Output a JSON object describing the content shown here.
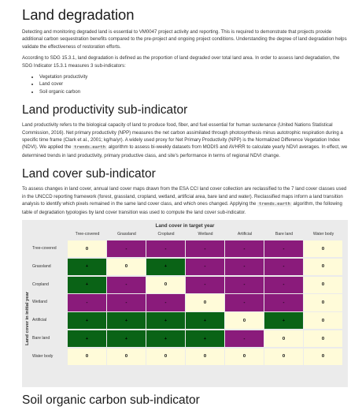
{
  "sections": {
    "degradation": {
      "title": "Land degradation",
      "p1": "Detecting and monitoring degraded land is essential to VM0047 project activity and reporting. This is required to demonstrate that projects provide additional carbon sequestration benefits compared to the pre-project and ongoing project conditions. Understanding the degree of land degradation helps validate the effectiveness of restoration efforts.",
      "p2": "According to SDG 15.3.1, land degradation is defined as the proportion of land degraded over total land area. In order to assess land degradation, the SDG Indicator 15.3.1 measures 3 sub-indicators:",
      "bullets": [
        "Vegetation productivity",
        "Land cover",
        "Soil organic carbon"
      ]
    },
    "productivity": {
      "title": "Land productivity sub-indicator",
      "p_a": "Land productivity refers to the biological capacity of land to produce food, fiber, and fuel essential for human sustenance (United Nations Statistical Commission, 2016). Net primary productivity (NPP) measures the net carbon assimilated through photosynthesis minus autotrophic respiration during a specific time frame (Clark et al., 2001; kg/ha/yr). A widely used proxy for Net Primary Productivity (NPP) is the Normalized Difference Vegetation Index (NDVI). We applied the ",
      "code": "trends.earth",
      "p_b": " algorithm to assess bi-weekly datasets from MODIS and AVHRR to calculate yearly NDVI averages. In effect, we determined trends in land productivity, primary productive class, and site's performance in terms of regional NDVI change."
    },
    "landcover": {
      "title": "Land cover sub-indicator",
      "p_a": "To assess changes in land cover, annual land cover maps drawn from the ESA CCI land cover collection are reclassified to the 7 land cover classes used in the UNCCD reporting framework (forest, grassland, cropland, wetland, artificial area, bare land and water). Reclassified maps inform a land transition analysis to identify which pixels remained in the same land cover class, and which ones changed. Applying the ",
      "code": "trends.earth",
      "p_b": " algorithm, the following table of degradation typologies by land cover transition was used to compute the land cover sub-indicator."
    },
    "soc": {
      "title": "Soil organic carbon sub-indicator"
    }
  },
  "matrix": {
    "title": "Land cover in target year",
    "y_title": "Land cover in initial year",
    "columns": [
      "Tree-covered",
      "Grassland",
      "Cropland",
      "Wetland",
      "Artificial",
      "Bare land",
      "Water body"
    ],
    "rows": [
      "Tree-covered",
      "Grassland",
      "Cropland",
      "Wetland",
      "Artificial",
      "Bare land",
      "Water body"
    ],
    "colors": {
      "degradation": "#8a1b7b",
      "improvement": "#0a6316",
      "stable": "#fffbd9"
    },
    "cells": [
      [
        {
          "v": "0",
          "t": "stable"
        },
        {
          "v": "-",
          "t": "degradation"
        },
        {
          "v": "-",
          "t": "degradation"
        },
        {
          "v": "-",
          "t": "degradation"
        },
        {
          "v": "-",
          "t": "degradation"
        },
        {
          "v": "-",
          "t": "degradation"
        },
        {
          "v": "0",
          "t": "stable"
        }
      ],
      [
        {
          "v": "+",
          "t": "improvement"
        },
        {
          "v": "0",
          "t": "stable"
        },
        {
          "v": "+",
          "t": "improvement"
        },
        {
          "v": "-",
          "t": "degradation"
        },
        {
          "v": "-",
          "t": "degradation"
        },
        {
          "v": "-",
          "t": "degradation"
        },
        {
          "v": "0",
          "t": "stable"
        }
      ],
      [
        {
          "v": "+",
          "t": "improvement"
        },
        {
          "v": "-",
          "t": "degradation"
        },
        {
          "v": "0",
          "t": "stable"
        },
        {
          "v": "-",
          "t": "degradation"
        },
        {
          "v": "-",
          "t": "degradation"
        },
        {
          "v": "-",
          "t": "degradation"
        },
        {
          "v": "0",
          "t": "stable"
        }
      ],
      [
        {
          "v": "-",
          "t": "degradation"
        },
        {
          "v": "-",
          "t": "degradation"
        },
        {
          "v": "-",
          "t": "degradation"
        },
        {
          "v": "0",
          "t": "stable"
        },
        {
          "v": "-",
          "t": "degradation"
        },
        {
          "v": "-",
          "t": "degradation"
        },
        {
          "v": "0",
          "t": "stable"
        }
      ],
      [
        {
          "v": "+",
          "t": "improvement"
        },
        {
          "v": "+",
          "t": "improvement"
        },
        {
          "v": "+",
          "t": "improvement"
        },
        {
          "v": "+",
          "t": "improvement"
        },
        {
          "v": "0",
          "t": "stable"
        },
        {
          "v": "+",
          "t": "improvement"
        },
        {
          "v": "0",
          "t": "stable"
        }
      ],
      [
        {
          "v": "+",
          "t": "improvement"
        },
        {
          "v": "+",
          "t": "improvement"
        },
        {
          "v": "+",
          "t": "improvement"
        },
        {
          "v": "+",
          "t": "improvement"
        },
        {
          "v": "-",
          "t": "degradation"
        },
        {
          "v": "0",
          "t": "stable"
        },
        {
          "v": "0",
          "t": "stable"
        }
      ],
      [
        {
          "v": "0",
          "t": "stable"
        },
        {
          "v": "0",
          "t": "stable"
        },
        {
          "v": "0",
          "t": "stable"
        },
        {
          "v": "0",
          "t": "stable"
        },
        {
          "v": "0",
          "t": "stable"
        },
        {
          "v": "0",
          "t": "stable"
        },
        {
          "v": "0",
          "t": "stable"
        }
      ]
    ]
  }
}
